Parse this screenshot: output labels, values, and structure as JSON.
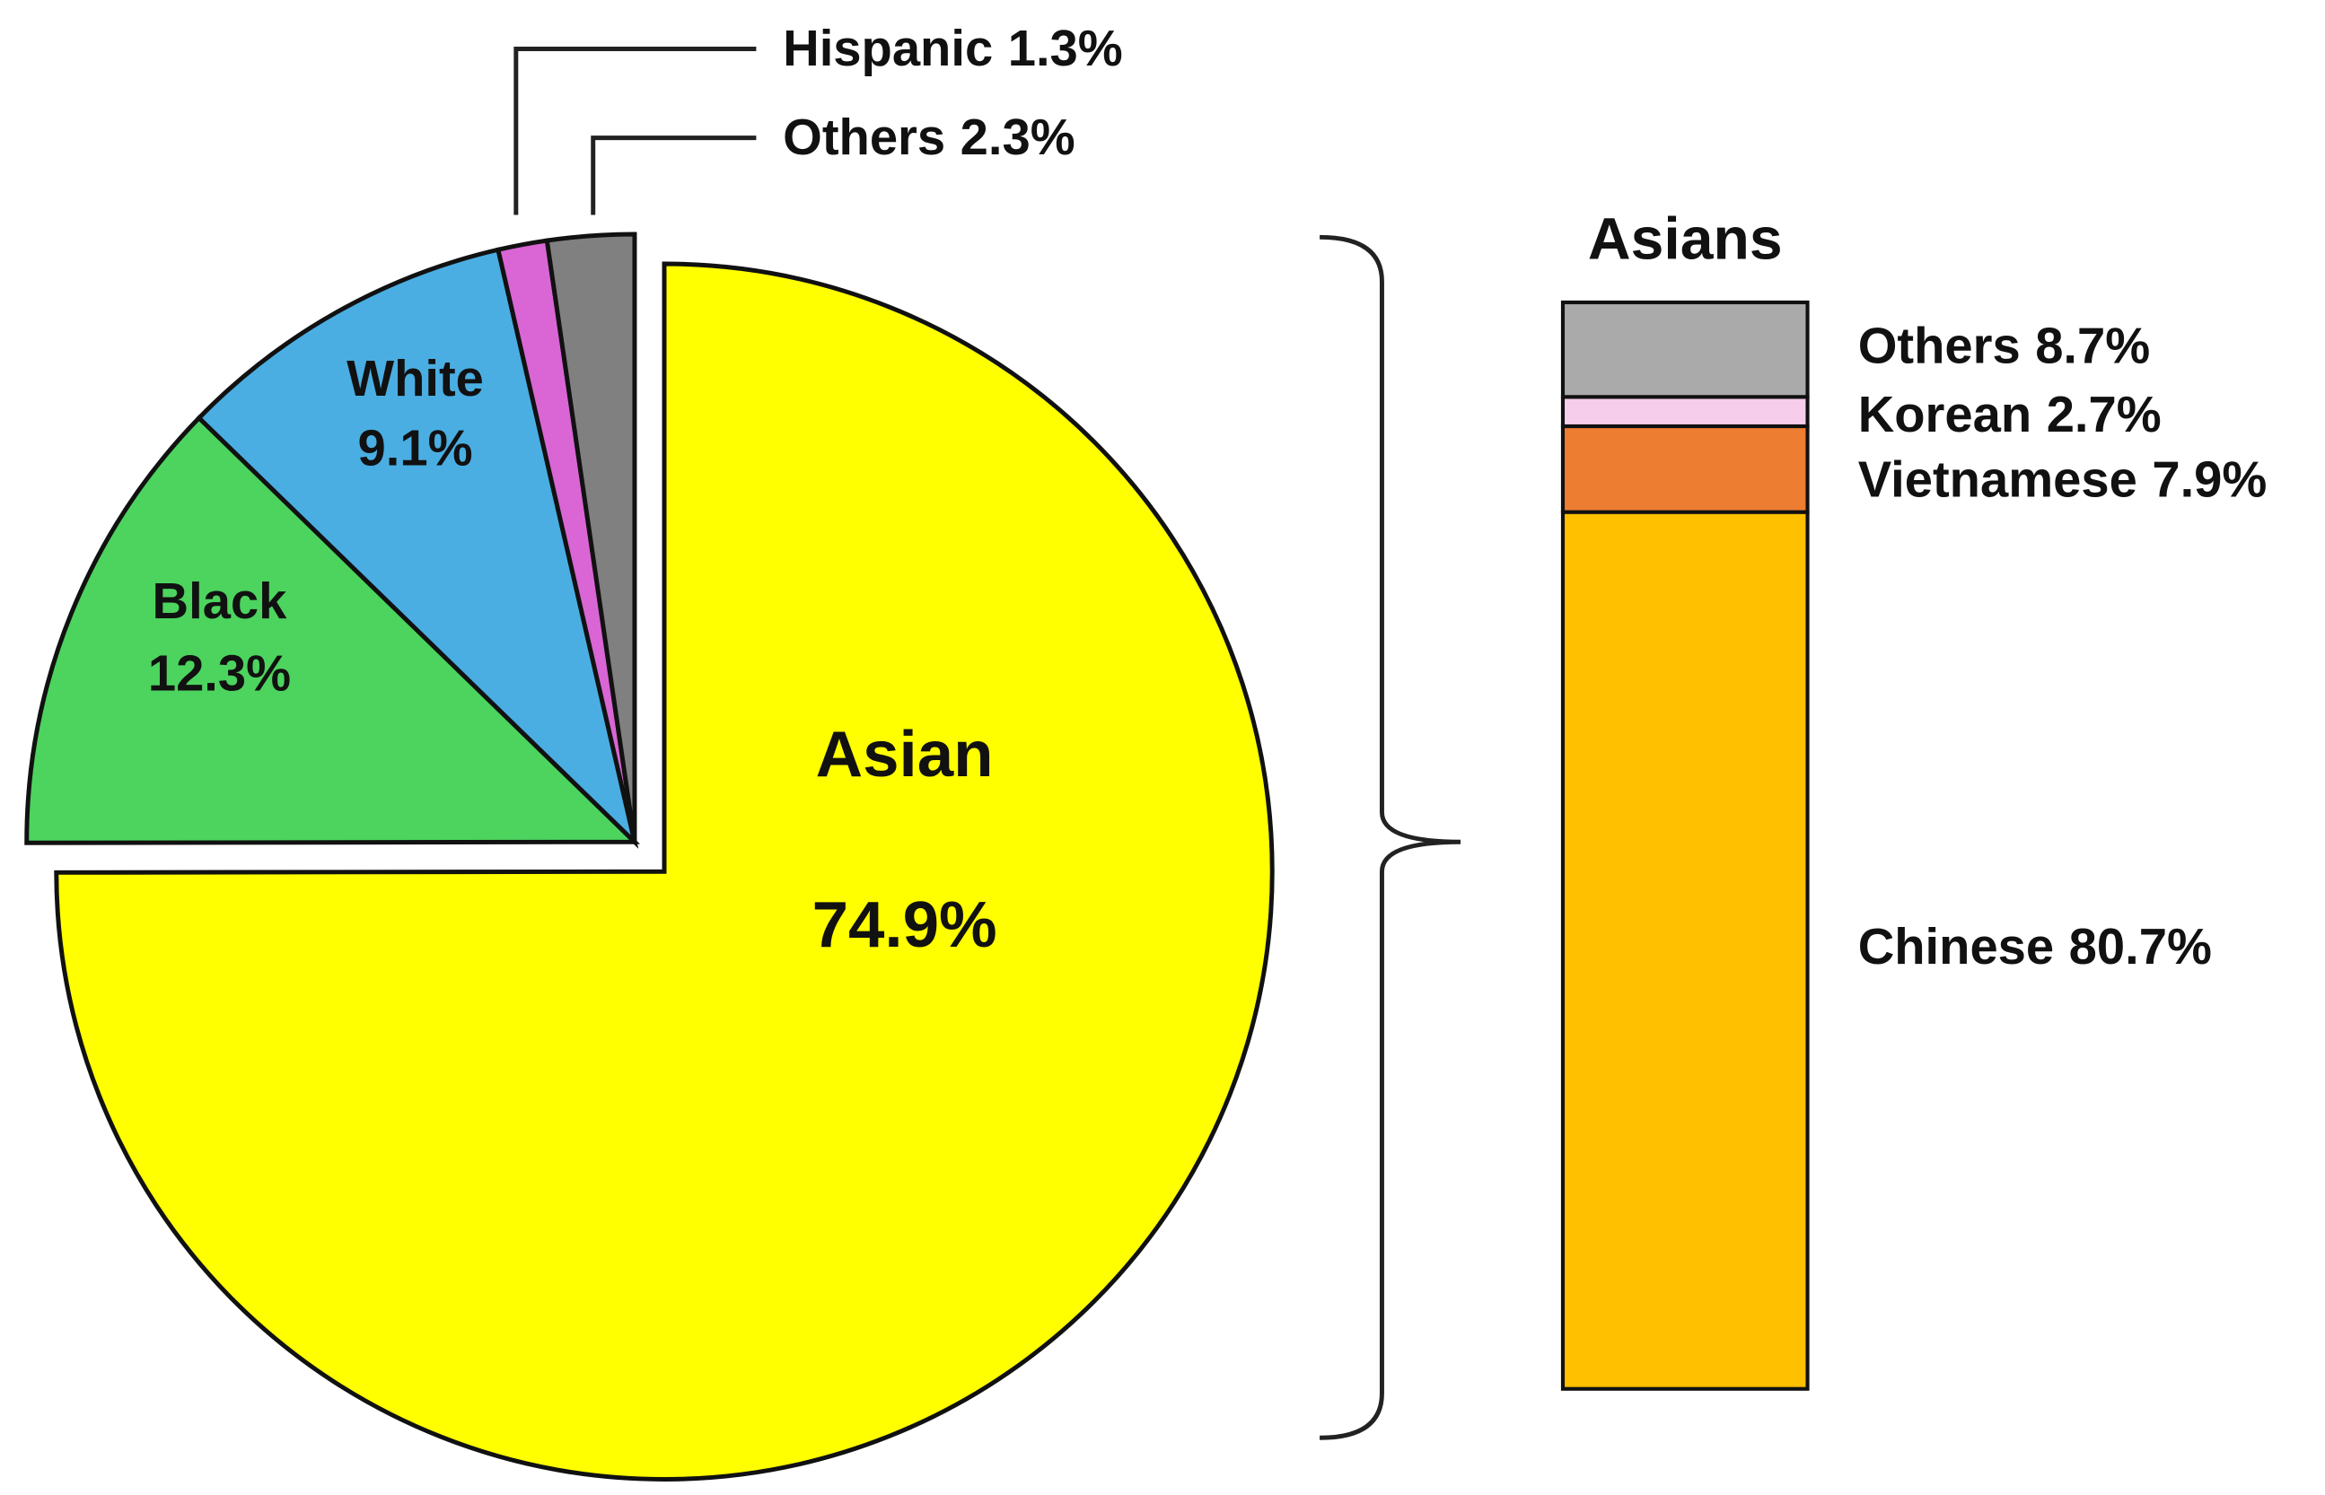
{
  "chart_data": [
    {
      "type": "pie",
      "categories": [
        "Asian",
        "Black",
        "White",
        "Hispanic",
        "Others"
      ],
      "values": [
        74.9,
        12.3,
        9.1,
        1.3,
        2.3
      ],
      "value_labels": [
        "74.9%",
        "12.3%",
        "9.1%",
        "1.3%",
        "2.3%"
      ],
      "colors": [
        "#ffff00",
        "#4cd45e",
        "#4aaee2",
        "#d966d4",
        "#808080"
      ]
    },
    {
      "type": "stacked_bar",
      "title": "Asians",
      "categories": [
        "Chinese",
        "Vietnamese",
        "Korean",
        "Others"
      ],
      "values": [
        80.7,
        7.9,
        2.7,
        8.7
      ],
      "value_labels": [
        "80.7%",
        "7.9%",
        "2.7%",
        "8.7%"
      ],
      "colors": [
        "#ffc000",
        "#ed7d31",
        "#f6cdea",
        "#aaaaaa"
      ]
    }
  ]
}
